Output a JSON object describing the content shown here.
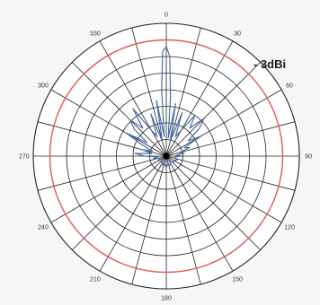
{
  "chart_data": {
    "type": "polar-line",
    "angle_ticks": [
      "0",
      "30",
      "60",
      "90",
      "120",
      "150",
      "180",
      "210",
      "240",
      "270",
      "300",
      "330"
    ],
    "annotation": "- 3dBi",
    "radius_range": [
      0,
      8
    ],
    "ring_count": 8,
    "reference_ring": 7,
    "angular_grid_step_deg": 15,
    "series": [
      {
        "color": "#4a6fa5",
        "angles": [
          -180,
          -170,
          -160,
          -150,
          -140,
          -130,
          -120,
          -110,
          -100,
          -95,
          -90,
          -85,
          -80,
          -75,
          -70,
          -65,
          -60,
          -55,
          -50,
          -45,
          -40,
          -35,
          -30,
          -25,
          -20,
          -15,
          -10,
          -6,
          -4,
          -2,
          0,
          2,
          4,
          6,
          10,
          15,
          20,
          25,
          30,
          35,
          40,
          45,
          50,
          55,
          60,
          65,
          70,
          75,
          80,
          85,
          90,
          95,
          100,
          110,
          120,
          130,
          140,
          150,
          160,
          170,
          180
        ],
        "radii": [
          0.7,
          0.5,
          0.6,
          0.4,
          0.5,
          0.3,
          0.6,
          0.4,
          0.8,
          0.5,
          1.3,
          1.9,
          0.9,
          1.5,
          0.9,
          1.6,
          2.8,
          1.4,
          2.5,
          3.1,
          2.2,
          3.5,
          1.8,
          1.3,
          2.7,
          0.9,
          3.4,
          1.2,
          4.0,
          6.3,
          6.6,
          6.0,
          3.6,
          1.1,
          3.2,
          0.9,
          2.8,
          1.3,
          1.8,
          3.0,
          2.2,
          3.2,
          2.6,
          1.6,
          2.4,
          1.2,
          1.5,
          0.8,
          1.1,
          0.6,
          0.9,
          0.6,
          0.5,
          0.7,
          0.5,
          0.6,
          0.4,
          0.5,
          0.6,
          0.5,
          0.7
        ]
      }
    ],
    "grid": true
  }
}
